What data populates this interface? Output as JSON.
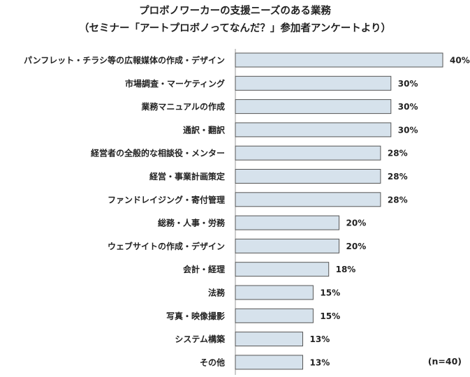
{
  "chart_data": {
    "type": "bar",
    "orientation": "horizontal",
    "title": "プロボノワーカーの支援ニーズのある業務",
    "subtitle": "（セミナー「アートプロボノってなんだ？」参加者アンケートより）",
    "categories": [
      "パンフレット・チラシ等の広報媒体の作成・デザイン",
      "市場調査・マーケティング",
      "業務マニュアルの作成",
      "通訳・翻訳",
      "経営者の全般的な相談役・メンター",
      "経営・事業計画策定",
      "ファンドレイジング・寄付管理",
      "総務・人事・労務",
      "ウェブサイトの作成・デザイン",
      "会計・経理",
      "法務",
      "写真・映像撮影",
      "システム構築",
      "その他"
    ],
    "values": [
      40,
      30,
      30,
      30,
      28,
      28,
      28,
      20,
      20,
      18,
      15,
      15,
      13,
      13
    ],
    "value_labels": [
      "40%",
      "30%",
      "30%",
      "30%",
      "28%",
      "28%",
      "28%",
      "20%",
      "20%",
      "18%",
      "15%",
      "15%",
      "13%",
      "13%"
    ],
    "xlim": [
      0,
      40
    ],
    "grid": false,
    "legend": "none",
    "bar_color": "#d6e2ec",
    "bar_edge_color": "#555555",
    "note": "(n=40)"
  }
}
